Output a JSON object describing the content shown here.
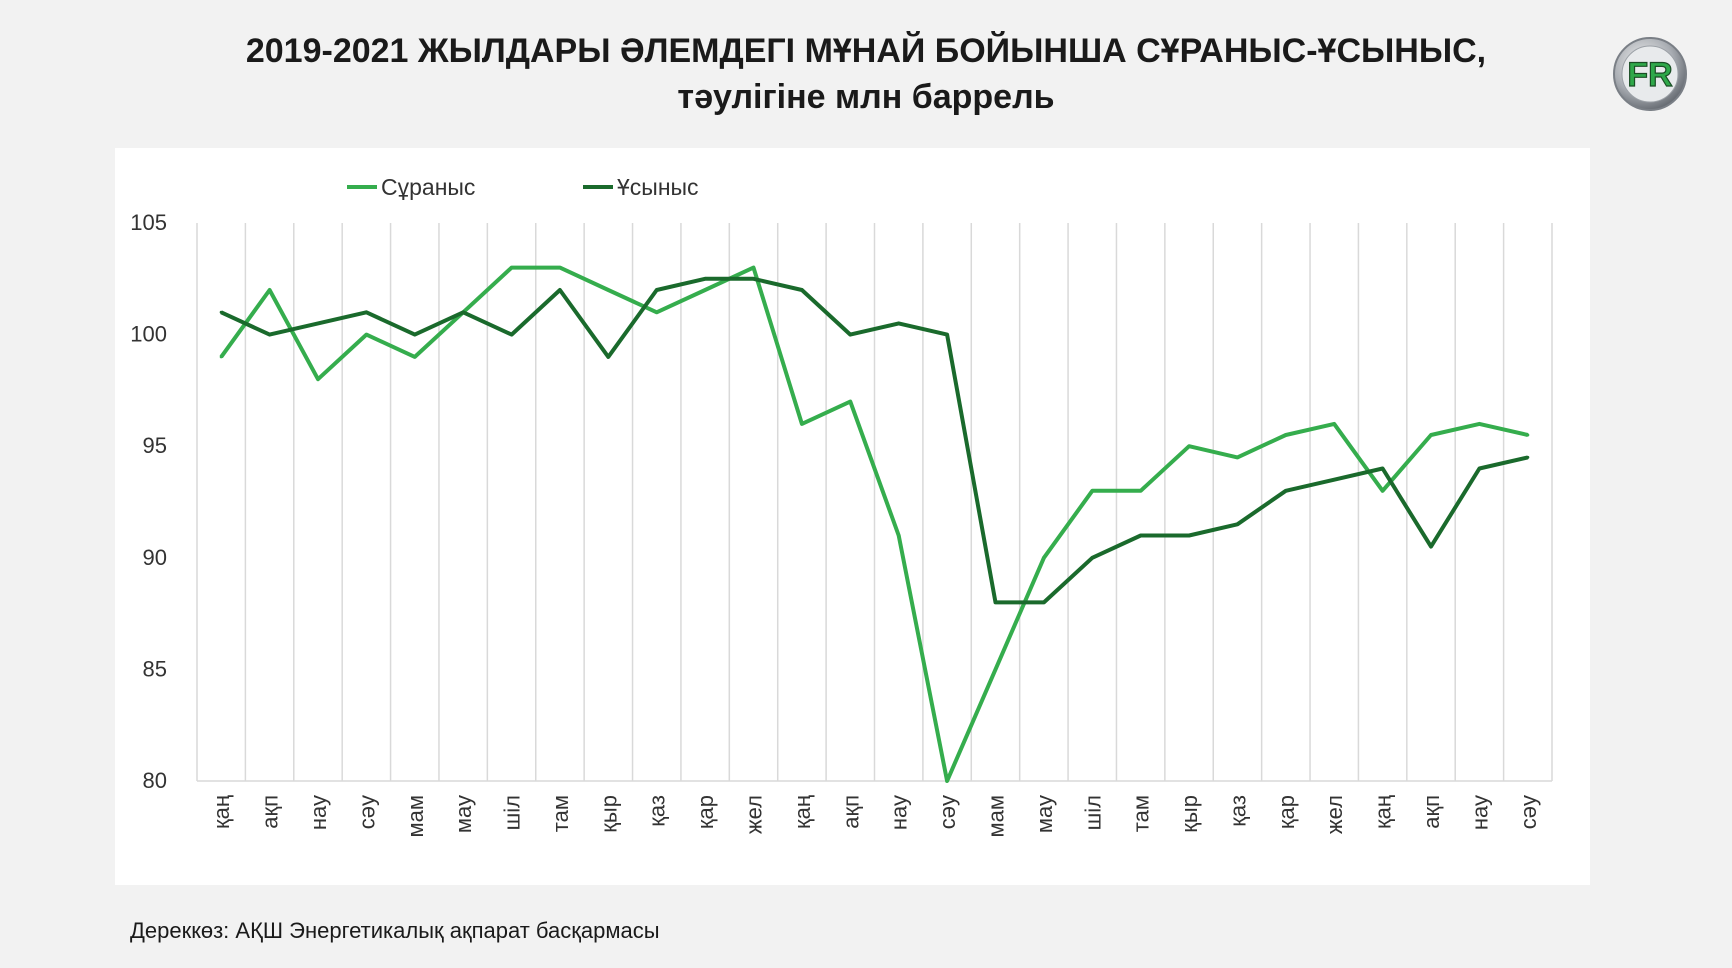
{
  "header": {
    "title_line1": "2019-2021 ЖЫЛДАРЫ ӘЛЕМДЕГІ МҰНАЙ БОЙЫНША СҰРАНЫС-ҰСЫНЫС,",
    "title_line2": "тәулігіне млн баррель"
  },
  "logo": {
    "text": "FR"
  },
  "footer": {
    "source": "Дереккөз: АҚШ Энергетикалық ақпарат басқармасы"
  },
  "colors": {
    "demand": "#35ad4d",
    "supply": "#1a6a2c",
    "grid": "#d9d9d9"
  },
  "chart_data": {
    "type": "line",
    "categories": [
      "қаң",
      "ақп",
      "нау",
      "сәу",
      "мам",
      "мау",
      "шіл",
      "там",
      "қыр",
      "қаз",
      "қар",
      "жел",
      "қаң",
      "ақп",
      "нау",
      "сәу",
      "мам",
      "мау",
      "шіл",
      "там",
      "қыр",
      "қаз",
      "қар",
      "жел",
      "қаң",
      "ақп",
      "нау",
      "сәу"
    ],
    "series": [
      {
        "name": "Сұраныс",
        "color": "#35ad4d",
        "values": [
          99,
          102,
          98,
          100,
          99,
          101,
          103,
          103,
          102,
          101,
          102,
          103,
          96,
          97,
          91,
          80,
          85,
          90,
          93,
          93,
          95,
          94.5,
          95.5,
          96,
          93,
          95.5,
          96,
          95.5
        ]
      },
      {
        "name": "Ұсыныс",
        "color": "#1a6a2c",
        "values": [
          101,
          100,
          100.5,
          101,
          100,
          101,
          100,
          102,
          99,
          102,
          102.5,
          102.5,
          102,
          100,
          100.5,
          100,
          88,
          88,
          90,
          91,
          91,
          91.5,
          93,
          93.5,
          94,
          90.5,
          94,
          94.5
        ]
      }
    ],
    "ylim": [
      80,
      105
    ],
    "yticks": [
      80,
      85,
      90,
      95,
      100,
      105
    ],
    "grid": "vertical",
    "legend": "top-left"
  }
}
